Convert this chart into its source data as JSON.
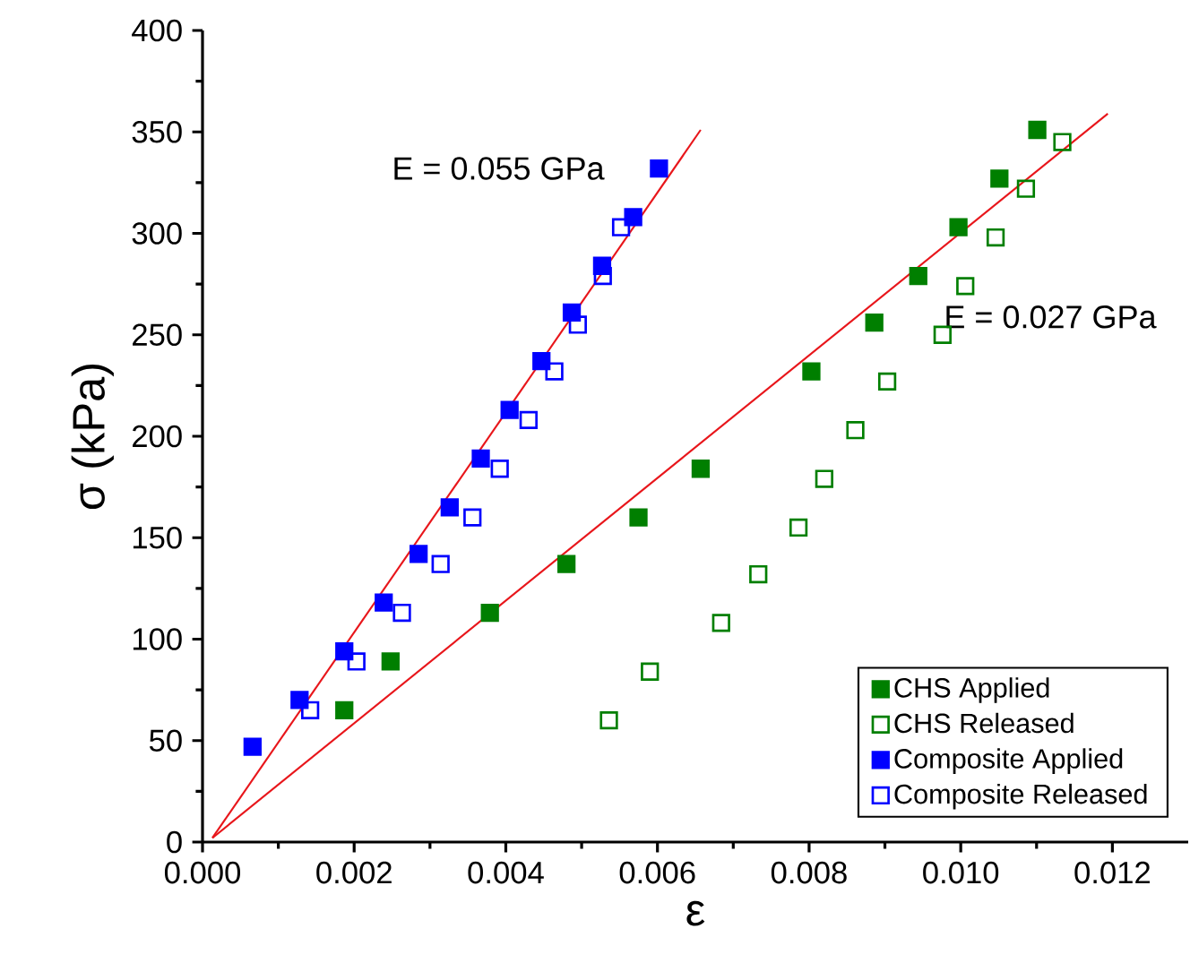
{
  "chart_data": {
    "type": "scatter",
    "xlabel": "ε",
    "ylabel": "σ (kPa)",
    "xlim": [
      0,
      0.013
    ],
    "ylim": [
      0,
      400
    ],
    "xticks": [
      {
        "value": 0,
        "label": "0.000"
      },
      {
        "value": 0.002,
        "label": "0.002"
      },
      {
        "value": 0.004,
        "label": "0.004"
      },
      {
        "value": 0.006,
        "label": "0.006"
      },
      {
        "value": 0.008,
        "label": "0.008"
      },
      {
        "value": 0.01,
        "label": "0.010"
      },
      {
        "value": 0.012,
        "label": "0.012"
      }
    ],
    "yticks": [
      0,
      50,
      100,
      150,
      200,
      250,
      300,
      350,
      400
    ],
    "legend": "bottom right",
    "series": [
      {
        "name": "CHS Applied",
        "color": "#007f00",
        "marker": "square",
        "x": [
          0.00187,
          0.00248,
          0.00379,
          0.0048,
          0.00575,
          0.00657,
          0.00803,
          0.00886,
          0.00944,
          0.00997,
          0.01051,
          0.01101
        ],
        "values": [
          65,
          89,
          113,
          137,
          160,
          184,
          232,
          256,
          279,
          303,
          327,
          351
        ]
      },
      {
        "name": "CHS Released",
        "color": "#007f00",
        "marker": "square",
        "x": [
          0.00536,
          0.0059,
          0.00684,
          0.00733,
          0.00786,
          0.0082,
          0.00861,
          0.00903,
          0.00976,
          0.01006,
          0.01046,
          0.01086,
          0.01134
        ],
        "values": [
          60,
          84,
          108,
          132,
          155,
          179,
          203,
          227,
          250,
          274,
          298,
          322,
          345
        ]
      },
      {
        "name": "Composite Applied",
        "color": "#0000ff",
        "marker": "square",
        "x": [
          0.00066,
          0.00128,
          0.00187,
          0.00239,
          0.00285,
          0.00326,
          0.00367,
          0.00405,
          0.00447,
          0.00487,
          0.00527,
          0.00568,
          0.00602
        ],
        "values": [
          47,
          70,
          94,
          118,
          142,
          165,
          189,
          213,
          237,
          261,
          284,
          308,
          332
        ]
      },
      {
        "name": "Composite Released",
        "color": "#0000ff",
        "marker": "square",
        "x": [
          0.00142,
          0.00203,
          0.00263,
          0.00314,
          0.00356,
          0.00392,
          0.0043,
          0.00464,
          0.00495,
          0.00528,
          0.00552
        ],
        "values": [
          65,
          89,
          113,
          137,
          160,
          184,
          208,
          232,
          255,
          279,
          303
        ]
      },
      {
        "type": "line",
        "color": "#e8161b",
        "marker": "none",
        "x": [
          0.00013,
          0.00657
        ],
        "values": [
          2,
          351
        ]
      },
      {
        "type": "line",
        "color": "#e8161b",
        "marker": "none",
        "x": [
          0.00013,
          0.01194
        ],
        "values": [
          2,
          359
        ]
      }
    ],
    "annotations": [
      "E = 0.055 GPa",
      "E = 0.027 GPa"
    ]
  }
}
